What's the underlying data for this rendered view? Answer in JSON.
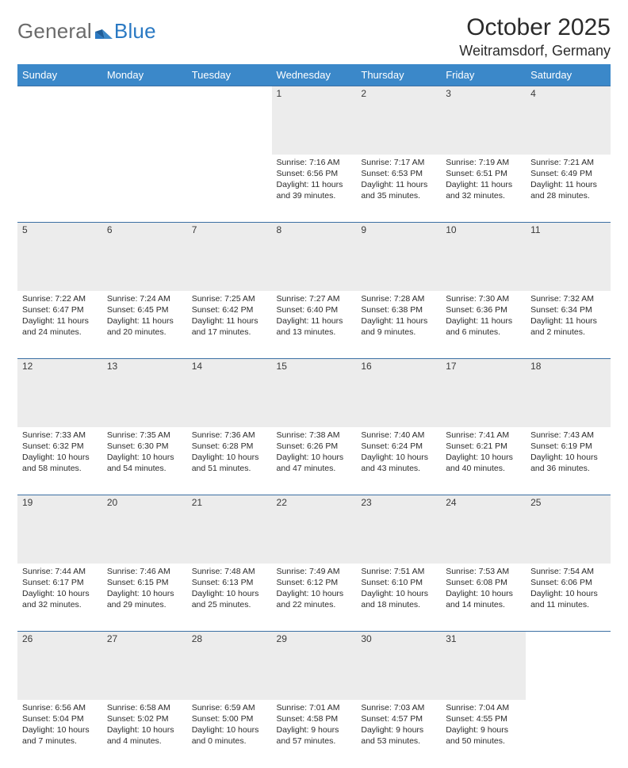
{
  "brand": {
    "part1": "General",
    "part2": "Blue"
  },
  "title": "October 2025",
  "location": "Weitramsdorf, Germany",
  "colors": {
    "header_bg": "#3b88c9",
    "header_text": "#ffffff",
    "daynum_bg": "#ececec",
    "rule": "#3b6fa3",
    "logo_gray": "#6b6b6b",
    "logo_blue": "#2a79c3",
    "body_text": "#2b2b2b"
  },
  "day_headers": [
    "Sunday",
    "Monday",
    "Tuesday",
    "Wednesday",
    "Thursday",
    "Friday",
    "Saturday"
  ],
  "weeks": [
    [
      null,
      null,
      null,
      {
        "n": "1",
        "sr": "7:16 AM",
        "ss": "6:56 PM",
        "dl": "11 hours and 39 minutes."
      },
      {
        "n": "2",
        "sr": "7:17 AM",
        "ss": "6:53 PM",
        "dl": "11 hours and 35 minutes."
      },
      {
        "n": "3",
        "sr": "7:19 AM",
        "ss": "6:51 PM",
        "dl": "11 hours and 32 minutes."
      },
      {
        "n": "4",
        "sr": "7:21 AM",
        "ss": "6:49 PM",
        "dl": "11 hours and 28 minutes."
      }
    ],
    [
      {
        "n": "5",
        "sr": "7:22 AM",
        "ss": "6:47 PM",
        "dl": "11 hours and 24 minutes."
      },
      {
        "n": "6",
        "sr": "7:24 AM",
        "ss": "6:45 PM",
        "dl": "11 hours and 20 minutes."
      },
      {
        "n": "7",
        "sr": "7:25 AM",
        "ss": "6:42 PM",
        "dl": "11 hours and 17 minutes."
      },
      {
        "n": "8",
        "sr": "7:27 AM",
        "ss": "6:40 PM",
        "dl": "11 hours and 13 minutes."
      },
      {
        "n": "9",
        "sr": "7:28 AM",
        "ss": "6:38 PM",
        "dl": "11 hours and 9 minutes."
      },
      {
        "n": "10",
        "sr": "7:30 AM",
        "ss": "6:36 PM",
        "dl": "11 hours and 6 minutes."
      },
      {
        "n": "11",
        "sr": "7:32 AM",
        "ss": "6:34 PM",
        "dl": "11 hours and 2 minutes."
      }
    ],
    [
      {
        "n": "12",
        "sr": "7:33 AM",
        "ss": "6:32 PM",
        "dl": "10 hours and 58 minutes."
      },
      {
        "n": "13",
        "sr": "7:35 AM",
        "ss": "6:30 PM",
        "dl": "10 hours and 54 minutes."
      },
      {
        "n": "14",
        "sr": "7:36 AM",
        "ss": "6:28 PM",
        "dl": "10 hours and 51 minutes."
      },
      {
        "n": "15",
        "sr": "7:38 AM",
        "ss": "6:26 PM",
        "dl": "10 hours and 47 minutes."
      },
      {
        "n": "16",
        "sr": "7:40 AM",
        "ss": "6:24 PM",
        "dl": "10 hours and 43 minutes."
      },
      {
        "n": "17",
        "sr": "7:41 AM",
        "ss": "6:21 PM",
        "dl": "10 hours and 40 minutes."
      },
      {
        "n": "18",
        "sr": "7:43 AM",
        "ss": "6:19 PM",
        "dl": "10 hours and 36 minutes."
      }
    ],
    [
      {
        "n": "19",
        "sr": "7:44 AM",
        "ss": "6:17 PM",
        "dl": "10 hours and 32 minutes."
      },
      {
        "n": "20",
        "sr": "7:46 AM",
        "ss": "6:15 PM",
        "dl": "10 hours and 29 minutes."
      },
      {
        "n": "21",
        "sr": "7:48 AM",
        "ss": "6:13 PM",
        "dl": "10 hours and 25 minutes."
      },
      {
        "n": "22",
        "sr": "7:49 AM",
        "ss": "6:12 PM",
        "dl": "10 hours and 22 minutes."
      },
      {
        "n": "23",
        "sr": "7:51 AM",
        "ss": "6:10 PM",
        "dl": "10 hours and 18 minutes."
      },
      {
        "n": "24",
        "sr": "7:53 AM",
        "ss": "6:08 PM",
        "dl": "10 hours and 14 minutes."
      },
      {
        "n": "25",
        "sr": "7:54 AM",
        "ss": "6:06 PM",
        "dl": "10 hours and 11 minutes."
      }
    ],
    [
      {
        "n": "26",
        "sr": "6:56 AM",
        "ss": "5:04 PM",
        "dl": "10 hours and 7 minutes."
      },
      {
        "n": "27",
        "sr": "6:58 AM",
        "ss": "5:02 PM",
        "dl": "10 hours and 4 minutes."
      },
      {
        "n": "28",
        "sr": "6:59 AM",
        "ss": "5:00 PM",
        "dl": "10 hours and 0 minutes."
      },
      {
        "n": "29",
        "sr": "7:01 AM",
        "ss": "4:58 PM",
        "dl": "9 hours and 57 minutes."
      },
      {
        "n": "30",
        "sr": "7:03 AM",
        "ss": "4:57 PM",
        "dl": "9 hours and 53 minutes."
      },
      {
        "n": "31",
        "sr": "7:04 AM",
        "ss": "4:55 PM",
        "dl": "9 hours and 50 minutes."
      },
      null
    ]
  ],
  "labels": {
    "sunrise": "Sunrise:",
    "sunset": "Sunset:",
    "daylight": "Daylight:"
  }
}
